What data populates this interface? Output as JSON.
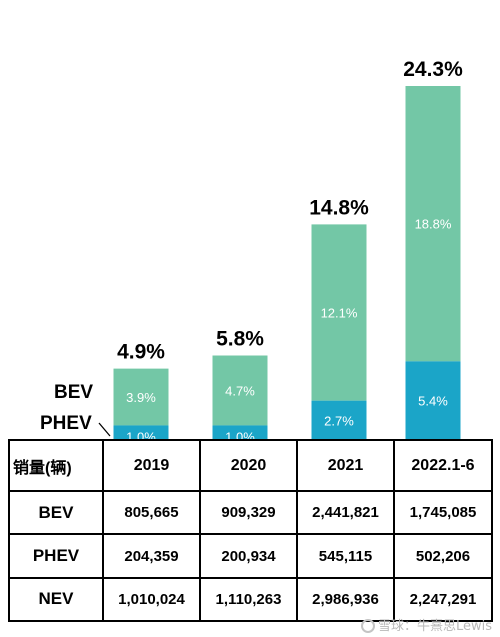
{
  "chart_data": {
    "type": "bar",
    "stacked": true,
    "categories": [
      "2019",
      "2020",
      "2021",
      "2022.1-6"
    ],
    "totals": [
      "4.9%",
      "5.8%",
      "14.8%",
      "24.3%"
    ],
    "total_values": [
      4.9,
      5.8,
      14.8,
      24.3
    ],
    "series": [
      {
        "name": "PHEV",
        "values": [
          1.0,
          1.0,
          2.7,
          5.4
        ],
        "labels": [
          "1.0%",
          "1.0%",
          "2.7%",
          "5.4%"
        ],
        "color": "#1ba5c8"
      },
      {
        "name": "BEV",
        "values": [
          3.9,
          4.7,
          12.1,
          18.8
        ],
        "labels": [
          "3.9%",
          "4.7%",
          "12.1%",
          "18.8%"
        ],
        "color": "#73c7a6"
      }
    ],
    "ylim": [
      0,
      24.3
    ]
  },
  "table": {
    "corner": "销量(辆)",
    "headers": [
      "2019",
      "2020",
      "2021",
      "2022.1-6"
    ],
    "rows": [
      {
        "label": "BEV",
        "cells": [
          "805,665",
          "909,329",
          "2,441,821",
          "1,745,085"
        ]
      },
      {
        "label": "PHEV",
        "cells": [
          "204,359",
          "200,934",
          "545,115",
          "502,206"
        ]
      },
      {
        "label": "NEV",
        "cells": [
          "1,010,024",
          "1,110,263",
          "2,986,936",
          "2,247,291"
        ]
      }
    ]
  },
  "watermark": "雪球：牛熹思Lewis"
}
